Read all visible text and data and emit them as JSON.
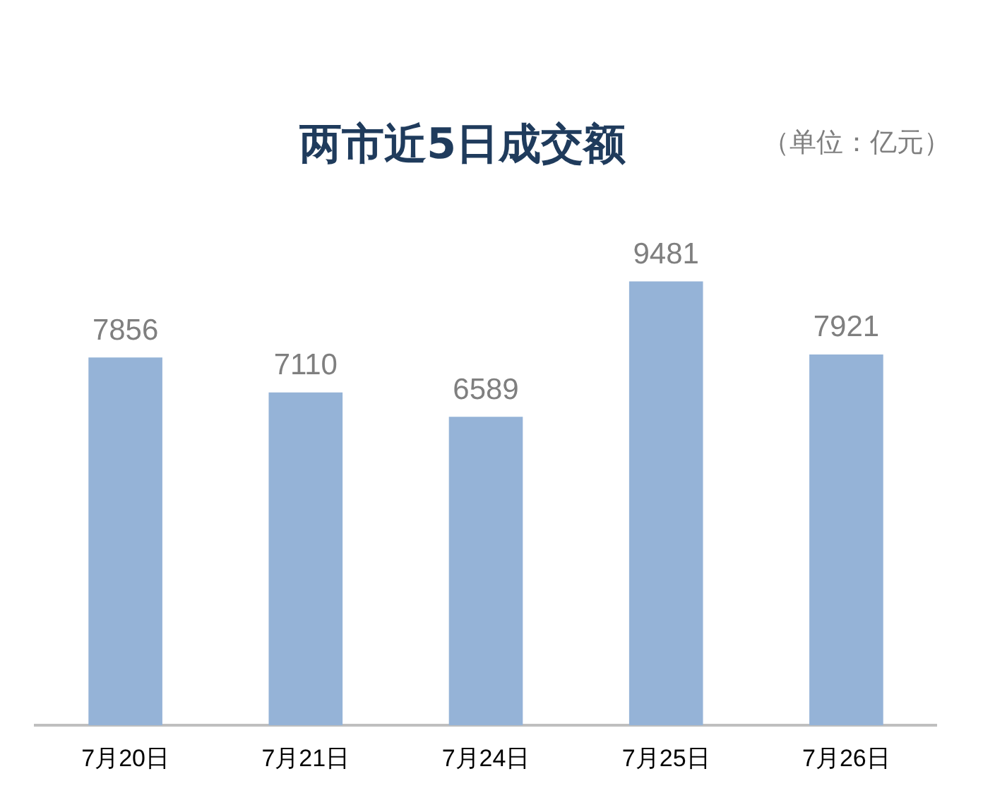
{
  "chart_data": {
    "type": "bar",
    "title": "两市近5日成交额",
    "subtitle": "（单位：亿元）",
    "categories": [
      "7月20日",
      "7月21日",
      "7月24日",
      "7月25日",
      "7月26日"
    ],
    "values": [
      7856,
      7110,
      6589,
      9481,
      7921
    ],
    "color": "#95b3d7",
    "data_labels": true
  }
}
